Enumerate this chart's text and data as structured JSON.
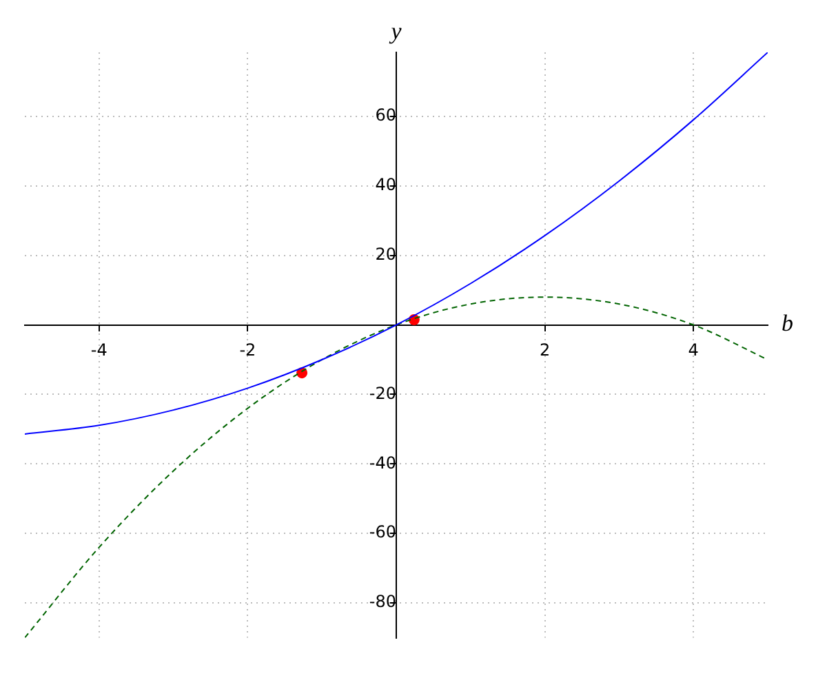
{
  "chart_data": {
    "type": "line",
    "xlabel": "b",
    "ylabel": "y",
    "xlim": [
      -5,
      5
    ],
    "ylim": [
      -90,
      78.4
    ],
    "xticks": [
      -4,
      -2,
      2,
      4
    ],
    "yticks": [
      -80,
      -60,
      -40,
      -20,
      20,
      40,
      60
    ],
    "grid": true,
    "series": [
      {
        "color": "#0000ff",
        "line_style": "solid",
        "marker": "none",
        "x": [
          -5,
          -4,
          -3,
          -2,
          -1,
          0,
          1,
          2,
          3,
          4,
          5
        ],
        "values": [
          -31.4,
          -28.9,
          -24.5,
          -18.2,
          -10,
          0,
          11.9,
          25.7,
          41.4,
          59,
          78.4
        ]
      },
      {
        "color": "#006400",
        "line_style": "dashed",
        "marker": "none",
        "x": [
          -5,
          -4,
          -3,
          -2,
          -1,
          0,
          1,
          2,
          3,
          4,
          5
        ],
        "values": [
          -90,
          -64,
          -42,
          -24,
          -10,
          0,
          6,
          8,
          6,
          0,
          -10
        ]
      },
      {
        "type": "scatter",
        "color": "#ff0000",
        "marker": "circle",
        "x": [
          -1.27,
          0.24
        ],
        "values": [
          -13.8,
          1.5
        ]
      }
    ]
  }
}
